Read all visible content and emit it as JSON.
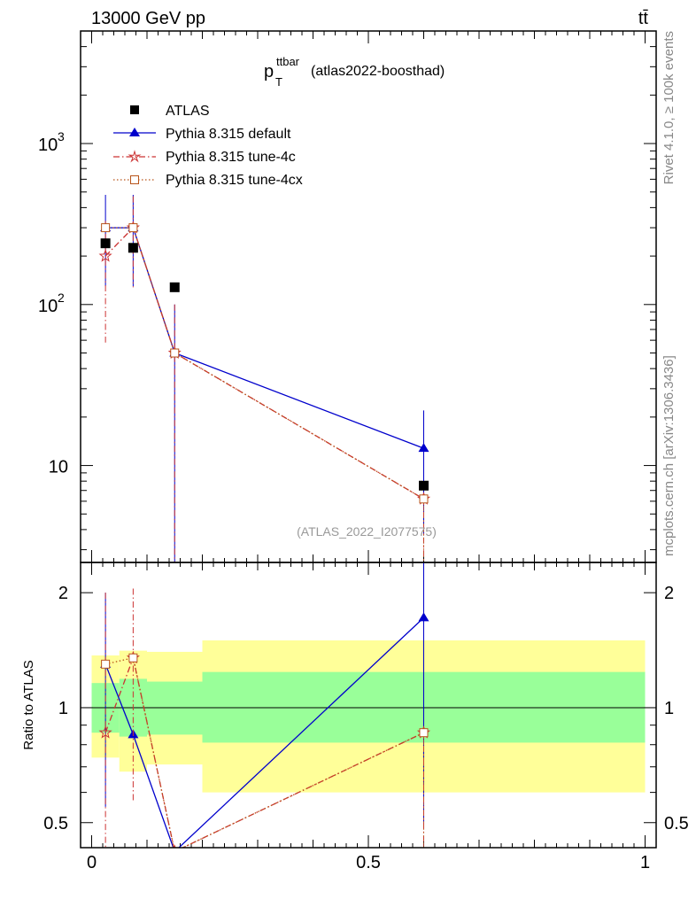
{
  "header": {
    "energy_label": "13000 GeV pp",
    "process_label": "tt̄",
    "side_rivet": "Rivet 4.1.0, ≥ 100k events",
    "side_site": "mcplots.cern.ch [arXiv:1306.3436]"
  },
  "chart_data": {
    "type": "line",
    "title": {
      "main": "p",
      "sup": "ttbar",
      "sub": "T",
      "rest": "(atlas2022-boosthad)"
    },
    "analysis_id": "(ATLAS_2022_I2077575)",
    "xlim": [
      -0.02,
      1.02
    ],
    "upper": {
      "yscale": "log",
      "ylim": [
        2.5,
        5000
      ],
      "tick_labels": [
        {
          "value": 1000,
          "base": "10",
          "exp": "3"
        },
        {
          "value": 100,
          "base": "10",
          "exp": "2"
        },
        {
          "value": 10,
          "base": "10",
          "exp": ""
        }
      ]
    },
    "lower": {
      "ylabel": "Ratio to ATLAS",
      "yscale": "log",
      "ylim": [
        0.43,
        2.4
      ],
      "tick_labels": [
        {
          "value": 2,
          "text": "2"
        },
        {
          "value": 1,
          "text": "1"
        },
        {
          "value": 0.5,
          "text": "0.5"
        }
      ],
      "yellow_band": [
        {
          "x0": 0.0,
          "x1": 0.05,
          "lo": 0.74,
          "hi": 1.37
        },
        {
          "x0": 0.05,
          "x1": 0.1,
          "lo": 0.68,
          "hi": 1.41
        },
        {
          "x0": 0.1,
          "x1": 0.2,
          "lo": 0.71,
          "hi": 1.4
        },
        {
          "x0": 0.2,
          "x1": 1.0,
          "lo": 0.6,
          "hi": 1.5
        }
      ],
      "green_band": [
        {
          "x0": 0.0,
          "x1": 0.05,
          "lo": 0.86,
          "hi": 1.16
        },
        {
          "x0": 0.05,
          "x1": 0.1,
          "lo": 0.84,
          "hi": 1.19
        },
        {
          "x0": 0.1,
          "x1": 0.2,
          "lo": 0.85,
          "hi": 1.17
        },
        {
          "x0": 0.2,
          "x1": 1.0,
          "lo": 0.81,
          "hi": 1.24
        }
      ]
    },
    "x_tick_labels": [
      {
        "value": 0,
        "text": "0"
      },
      {
        "value": 0.5,
        "text": "0.5"
      },
      {
        "value": 1,
        "text": "1"
      }
    ],
    "series": [
      {
        "name": "ATLAS",
        "color": "#000000",
        "marker": "square-filled",
        "line": "none",
        "x": [
          0.025,
          0.075,
          0.15,
          0.6
        ],
        "y": [
          240,
          225,
          128,
          7.5
        ],
        "ratio": [
          1,
          1,
          1,
          1
        ],
        "ratio_err_lo": [
          0,
          0,
          0,
          0
        ],
        "ratio_err_hi": [
          0,
          0,
          0,
          0
        ]
      },
      {
        "name": "Pythia 8.315 default",
        "color": "#0000cc",
        "marker": "triangle-filled",
        "line": "solid",
        "x": [
          0.025,
          0.075,
          0.15,
          0.6
        ],
        "y": [
          300,
          300,
          50,
          12.8
        ],
        "y_err_lo": [
          130,
          130,
          2.5,
          3.7
        ],
        "y_err_hi": [
          480,
          480,
          100,
          22
        ],
        "ratio": [
          1.3,
          0.85,
          0.42,
          1.72
        ],
        "ratio_err_lo": [
          0.55,
          0.85,
          0.42,
          0.5
        ],
        "ratio_err_hi": [
          2.0,
          0.85,
          0.42,
          2.4
        ]
      },
      {
        "name": "Pythia 8.315 tune-4c",
        "color": "#cc3333",
        "marker": "star-open",
        "line": "dashdot",
        "x": [
          0.025,
          0.075,
          0.15,
          0.6
        ],
        "y": [
          200,
          300,
          50,
          6.2
        ],
        "y_err_lo": [
          58,
          128,
          2.5,
          2.5
        ],
        "y_err_hi": [
          330,
          470,
          100,
          6.2
        ],
        "ratio": [
          0.86,
          1.35,
          0.42,
          0.86
        ],
        "ratio_err_lo": [
          0.43,
          0.57,
          0.42,
          0.43
        ],
        "ratio_err_hi": [
          2.0,
          2.05,
          0.42,
          0.86
        ]
      },
      {
        "name": "Pythia 8.315 tune-4cx",
        "color": "#b8541a",
        "marker": "square-open",
        "line": "dotted",
        "x": [
          0.025,
          0.075,
          0.15,
          0.6
        ],
        "y": [
          300,
          300,
          50,
          6.2
        ],
        "y_err_lo": [
          300,
          300,
          50,
          2.5
        ],
        "y_err_hi": [
          300,
          300,
          50,
          6.2
        ],
        "ratio": [
          1.3,
          1.35,
          0.42,
          0.86
        ],
        "ratio_err_lo": [
          1.3,
          1.35,
          0.42,
          0.43
        ],
        "ratio_err_hi": [
          1.3,
          1.35,
          0.42,
          0.86
        ]
      }
    ]
  }
}
